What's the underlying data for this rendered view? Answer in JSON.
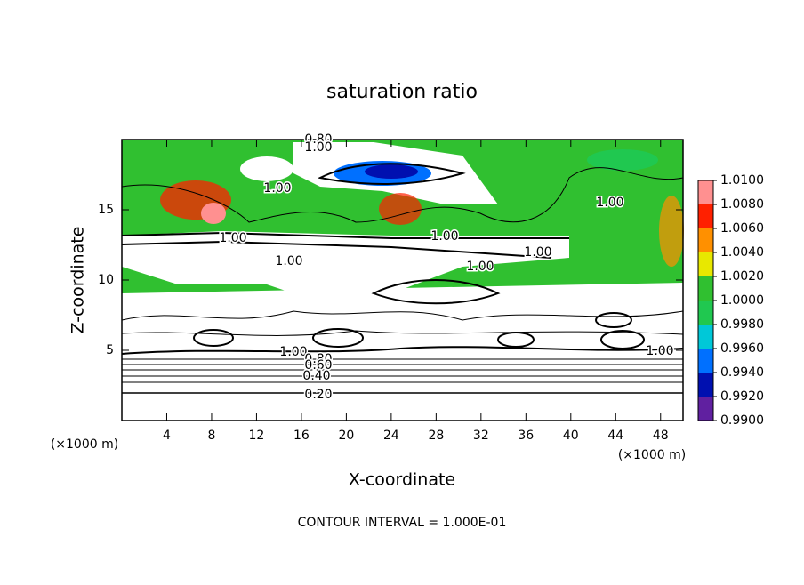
{
  "chart_data": {
    "type": "contour",
    "title": "saturation ratio",
    "x_label": "X-coordinate",
    "y_label": "Z-coordinate",
    "x_unit": "(×1000 m)",
    "y_unit": "(×1000 m)",
    "footer": "CONTOUR INTERVAL = 1.000E-01",
    "xlim": [
      0,
      50
    ],
    "xticks": [
      4,
      8,
      12,
      16,
      20,
      24,
      28,
      32,
      36,
      40,
      44,
      48
    ],
    "ylim": [
      0,
      20
    ],
    "yticks": [
      5,
      10,
      15
    ],
    "contour_labels": [
      "0.80",
      "1.00",
      "1.00",
      "1.00",
      "1.00",
      "1.00",
      "1.00",
      "1.00",
      "1.00",
      "1.00",
      "1.00",
      "0.80",
      "0.60",
      "0.40",
      "0.20"
    ],
    "colorbar": {
      "ticks": [
        {
          "value": 0.99,
          "label": "0.9900"
        },
        {
          "value": 0.992,
          "label": "0.9920"
        },
        {
          "value": 0.994,
          "label": "0.9940"
        },
        {
          "value": 0.996,
          "label": "0.9960"
        },
        {
          "value": 0.998,
          "label": "0.9980"
        },
        {
          "value": 1.0,
          "label": "1.0000"
        },
        {
          "value": 1.002,
          "label": "1.0020"
        },
        {
          "value": 1.004,
          "label": "1.0040"
        },
        {
          "value": 1.006,
          "label": "1.0060"
        },
        {
          "value": 1.008,
          "label": "1.0080"
        },
        {
          "value": 1.01,
          "label": "1.0100"
        }
      ],
      "colors": [
        "#6020a0",
        "#0010b0",
        "#0070ff",
        "#00c8d8",
        "#20c850",
        "#30c030",
        "#e8e800",
        "#ff9000",
        "#ff2000",
        "#ff9090"
      ]
    }
  }
}
